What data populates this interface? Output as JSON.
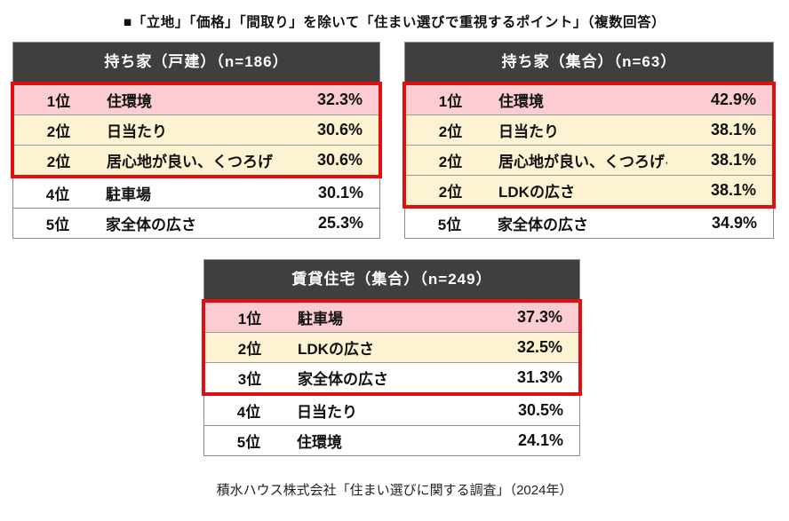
{
  "title": "■「立地」「価格」「間取り」を除いて「住まい選びで重視するポイント」（複数回答）",
  "footer": "積水ハウス株式会社「住まい選びに関する調査」（2024年）",
  "colors": {
    "header_bg": "#3f3f3f",
    "header_text": "#ffffff",
    "rank1_bg": "#fbccd1",
    "rank2_bg": "#fdf2d1",
    "highlight_border": "#e01010",
    "grid": "#8c8c8c"
  },
  "chart_data": {
    "type": "table",
    "title": "■「立地」「価格」「間取り」を除いて「住まい選びで重視するポイント」（複数回答）",
    "source": "積水ハウス株式会社「住まい選びに関する調査」（2024年）",
    "tables": [
      {
        "header": "持ち家（戸建）（n=186）",
        "highlight_rows": 3,
        "rows": [
          {
            "rank": "1位",
            "item": "住環境",
            "value": "32.3%",
            "tone": "rank1"
          },
          {
            "rank": "2位",
            "item": "日当たり",
            "value": "30.6%",
            "tone": "rank2"
          },
          {
            "rank": "2位",
            "item": "居心地が良い、くつろげる",
            "value": "30.6%",
            "tone": "rank2"
          },
          {
            "rank": "4位",
            "item": "駐車場",
            "value": "30.1%",
            "tone": "plain"
          },
          {
            "rank": "5位",
            "item": "家全体の広さ",
            "value": "25.3%",
            "tone": "plain"
          }
        ]
      },
      {
        "header": "持ち家（集合）（n=63）",
        "highlight_rows": 4,
        "rows": [
          {
            "rank": "1位",
            "item": "住環境",
            "value": "42.9%",
            "tone": "rank1"
          },
          {
            "rank": "2位",
            "item": "日当たり",
            "value": "38.1%",
            "tone": "rank2"
          },
          {
            "rank": "2位",
            "item": "居心地が良い、くつろげる",
            "value": "38.1%",
            "tone": "rank2"
          },
          {
            "rank": "2位",
            "item": "LDKの広さ",
            "value": "38.1%",
            "tone": "rank2"
          },
          {
            "rank": "5位",
            "item": "家全体の広さ",
            "value": "34.9%",
            "tone": "plain"
          }
        ]
      },
      {
        "header": "賃貸住宅（集合）（n=249）",
        "highlight_rows": 3,
        "rows": [
          {
            "rank": "1位",
            "item": "駐車場",
            "value": "37.3%",
            "tone": "rank1"
          },
          {
            "rank": "2位",
            "item": "LDKの広さ",
            "value": "32.5%",
            "tone": "rank2"
          },
          {
            "rank": "3位",
            "item": "家全体の広さ",
            "value": "31.3%",
            "tone": "plain"
          },
          {
            "rank": "4位",
            "item": "日当たり",
            "value": "30.5%",
            "tone": "plain"
          },
          {
            "rank": "5位",
            "item": "住環境",
            "value": "24.1%",
            "tone": "plain"
          }
        ]
      }
    ]
  }
}
